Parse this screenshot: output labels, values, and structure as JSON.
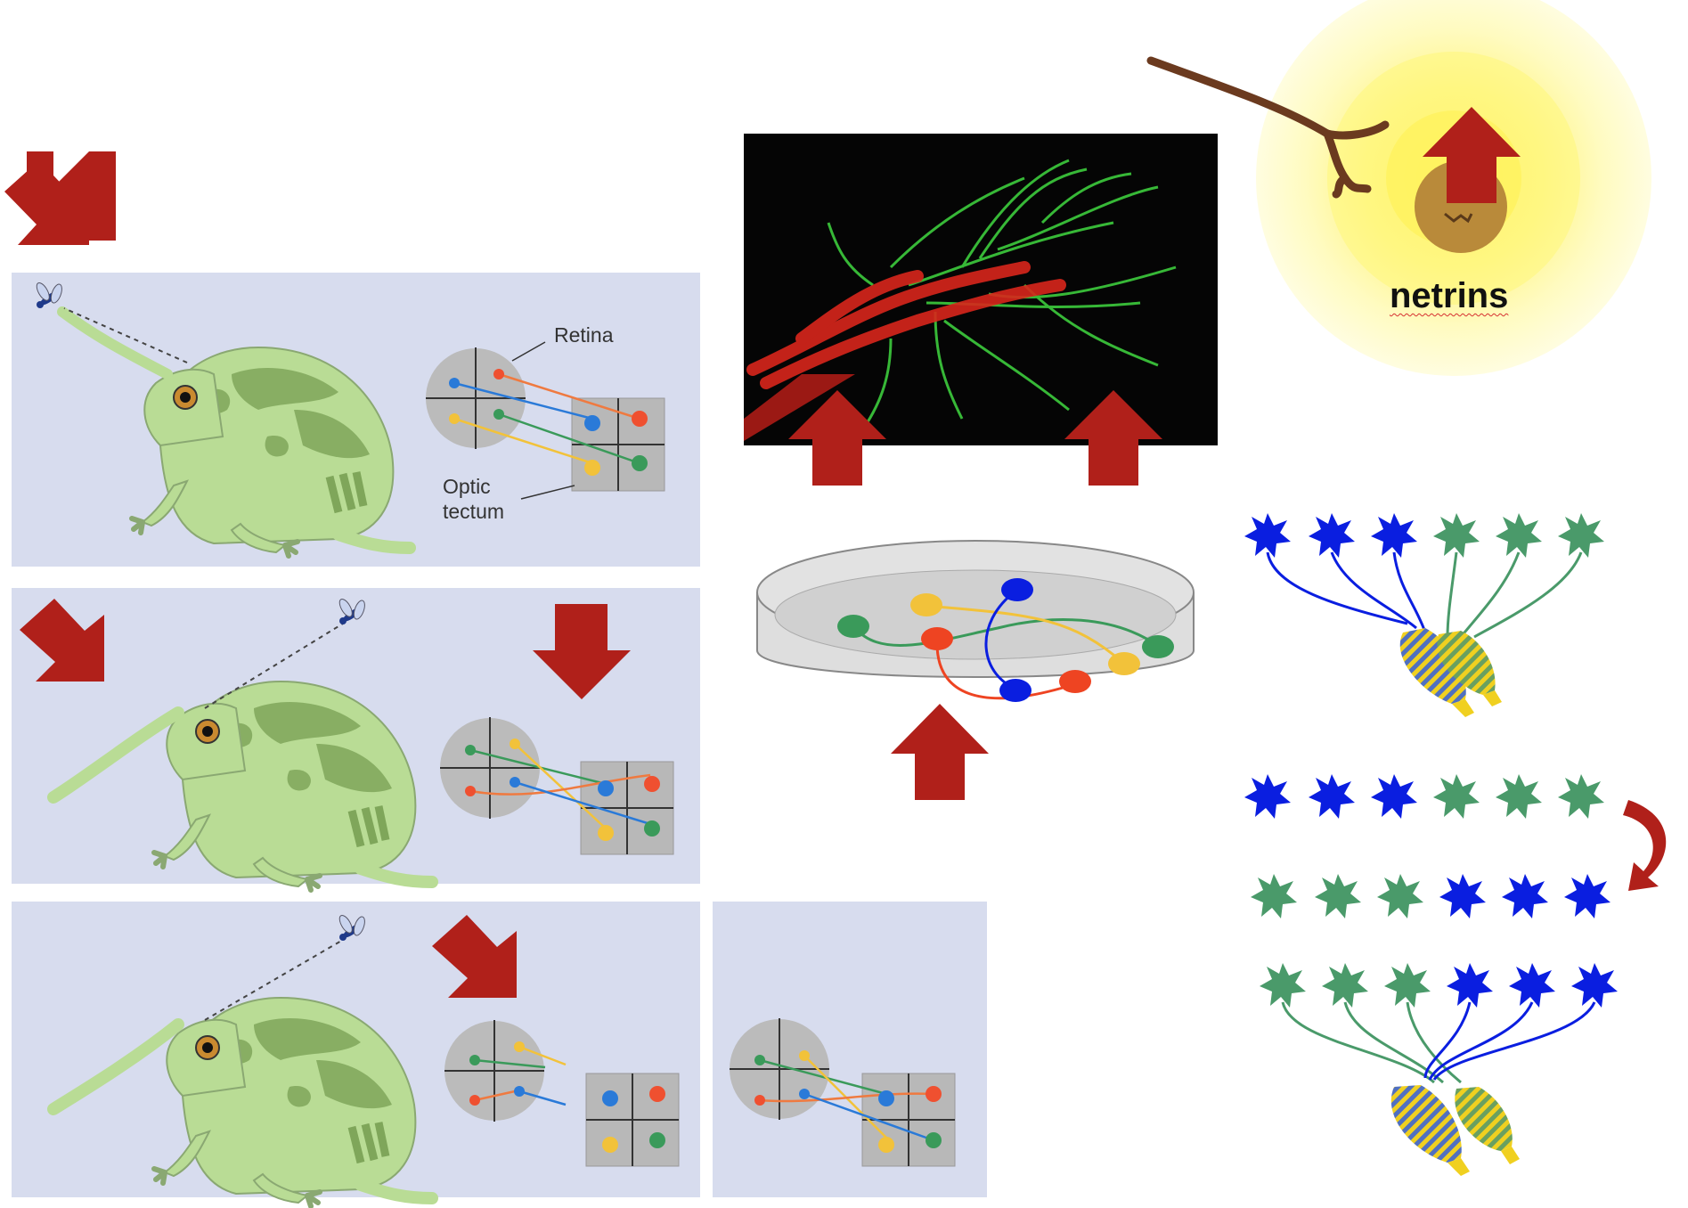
{
  "labels": {
    "retina": "Retina",
    "optic_tectum_line1": "Optic",
    "optic_tectum_line2": "tectum",
    "netrins": "netrins"
  },
  "colors": {
    "panel_bg": "#d7dcee",
    "arrow_red": "#b0201a",
    "frog_light": "#b9dc95",
    "frog_dark": "#7fa65a",
    "neuron_blue": "#0a1ee0",
    "neuron_green": "#4a9a6a",
    "cell_red": "#ee4422",
    "cell_yellow": "#f2d23a",
    "cell_blue": "#1a55d8",
    "cell_green": "#3a9a5a",
    "glow_yellow": "#fff7a0",
    "growth_cone_brown": "#b98a3a",
    "stick_brown": "#6b3a1f"
  },
  "icons": [
    "down-right-arrow-icon",
    "down-arrow-icon",
    "up-arrow-icon",
    "curved-arrow-icon",
    "frog-icon",
    "fly-icon",
    "neuron-icon"
  ]
}
